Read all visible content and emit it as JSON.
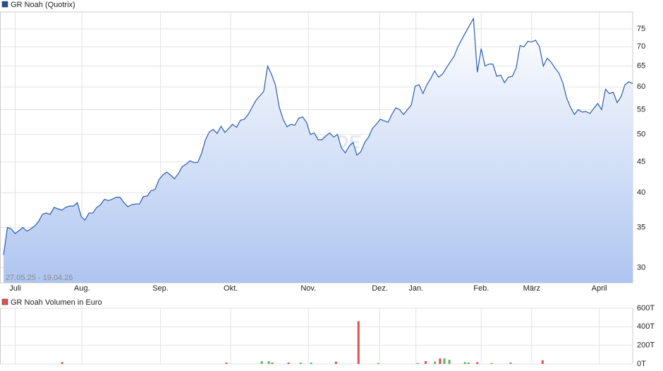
{
  "chart_data": [
    {
      "type": "line",
      "title": "GR Noah (Quotrix)",
      "note": "27.05.25 - 19.04.26",
      "watermark": "ARIVA.DE",
      "log_scale": true,
      "grid": true,
      "legend_color": "#1f4e9c",
      "xlim": [
        0,
        162
      ],
      "ylim": [
        28.3,
        80
      ],
      "xticks": [
        {
          "value": 3,
          "label": "Juli"
        },
        {
          "value": 20.2,
          "label": "Aug."
        },
        {
          "value": 40.4,
          "label": "Sep."
        },
        {
          "value": 58.5,
          "label": "Okt."
        },
        {
          "value": 78.5,
          "label": "Nov."
        },
        {
          "value": 96.9,
          "label": "Dez."
        },
        {
          "value": 106.2,
          "label": "Jan."
        },
        {
          "value": 123,
          "label": "Feb."
        },
        {
          "value": 136,
          "label": "März"
        },
        {
          "value": 153.4,
          "label": "April"
        }
      ],
      "yticks": [
        30,
        35,
        40,
        45,
        50,
        55,
        60,
        65,
        70,
        75
      ],
      "series": [
        {
          "name": "GR Noah (Quotrix)",
          "color": "#2a5db0",
          "values": [
            31.5,
            35,
            34.8,
            34.2,
            34.6,
            35,
            34.5,
            34.8,
            35.2,
            35.8,
            36.8,
            37,
            36.8,
            37.8,
            37.6,
            37.4,
            37.8,
            38,
            38,
            38.5,
            36.5,
            36,
            37,
            37,
            37.8,
            38.2,
            39,
            38.8,
            39,
            39.3,
            39.3,
            38.5,
            37.9,
            38.2,
            38.3,
            38.3,
            39.4,
            39.5,
            40.3,
            40.5,
            42,
            42.8,
            43.3,
            42.8,
            42.2,
            43,
            44.2,
            44.6,
            45.2,
            44.9,
            44.9,
            46.5,
            49,
            50.5,
            51,
            50.2,
            51.6,
            50.4,
            51.2,
            52,
            51.4,
            52.8,
            53,
            54,
            55.5,
            57,
            58,
            59,
            65,
            63,
            60.5,
            55.5,
            53,
            51.5,
            52,
            51.8,
            53.2,
            53.5,
            52.4,
            50,
            50.3,
            49,
            49,
            49.7,
            50.3,
            49.5,
            50,
            47.5,
            46.6,
            47.8,
            48.5,
            46.2,
            46.8,
            48.5,
            49.5,
            51.2,
            52,
            53,
            52.7,
            52.4,
            54,
            55.4,
            55,
            54,
            55,
            56,
            60.2,
            60.5,
            58.5,
            60.5,
            62,
            63.8,
            62.3,
            63,
            64.5,
            66,
            67.5,
            70,
            72,
            74,
            76,
            78,
            63.5,
            69.5,
            65,
            65.5,
            65.5,
            62.5,
            62.8,
            61,
            62.3,
            62.5,
            64.5,
            70.3,
            70,
            71.5,
            71.3,
            71.8,
            70,
            65,
            67,
            66,
            64.5,
            63.3,
            61,
            57.5,
            55.5,
            54,
            55,
            54.5,
            54.6,
            54.2,
            55.3,
            56.3,
            55,
            59.5,
            58.5,
            58.8,
            56.5,
            57.8,
            60.5,
            61.2,
            60.8
          ]
        }
      ]
    },
    {
      "type": "bar",
      "title": "GR Noah Volumen in Euro",
      "legend_color": "#d9534f",
      "xlim": [
        0,
        162
      ],
      "ylim": [
        0,
        600000
      ],
      "yticks": [
        {
          "value": 0,
          "label": "0T"
        },
        {
          "value": 200000,
          "label": "200T"
        },
        {
          "value": 400000,
          "label": "400T"
        },
        {
          "value": 600000,
          "label": "600T"
        }
      ],
      "series": [
        {
          "name": "GR Noah Volumen in Euro",
          "x": [
            15.1,
            57.4,
            66.5,
            68.3,
            69.2,
            73.4,
            76.5,
            79.2,
            85.6,
            91.4,
            96.5,
            106.6,
            108.7,
            111.1,
            112.4,
            113.5,
            114.8,
            118.8,
            119.7,
            122,
            125.7,
            130.6,
            138.8
          ],
          "values": [
            20000,
            15000,
            30000,
            30000,
            15000,
            15000,
            15000,
            15000,
            25000,
            460000,
            10000,
            10000,
            30000,
            25000,
            60000,
            60000,
            45000,
            20000,
            15000,
            20000,
            10000,
            15000,
            40000
          ],
          "colors": [
            "#d9534f",
            "#d9534f",
            "#5cb85c",
            "#5cb85c",
            "#d9534f",
            "#d9534f",
            "#5cb85c",
            "#5cb85c",
            "#d9534f",
            "#d9534f",
            "#5cb85c",
            "#5cb85c",
            "#d9534f",
            "#5cb85c",
            "#d9534f",
            "#5cb85c",
            "#5cb85c",
            "#5cb85c",
            "#5cb85c",
            "#d9534f",
            "#5cb85c",
            "#5cb85c",
            "#d9534f"
          ]
        }
      ]
    }
  ]
}
